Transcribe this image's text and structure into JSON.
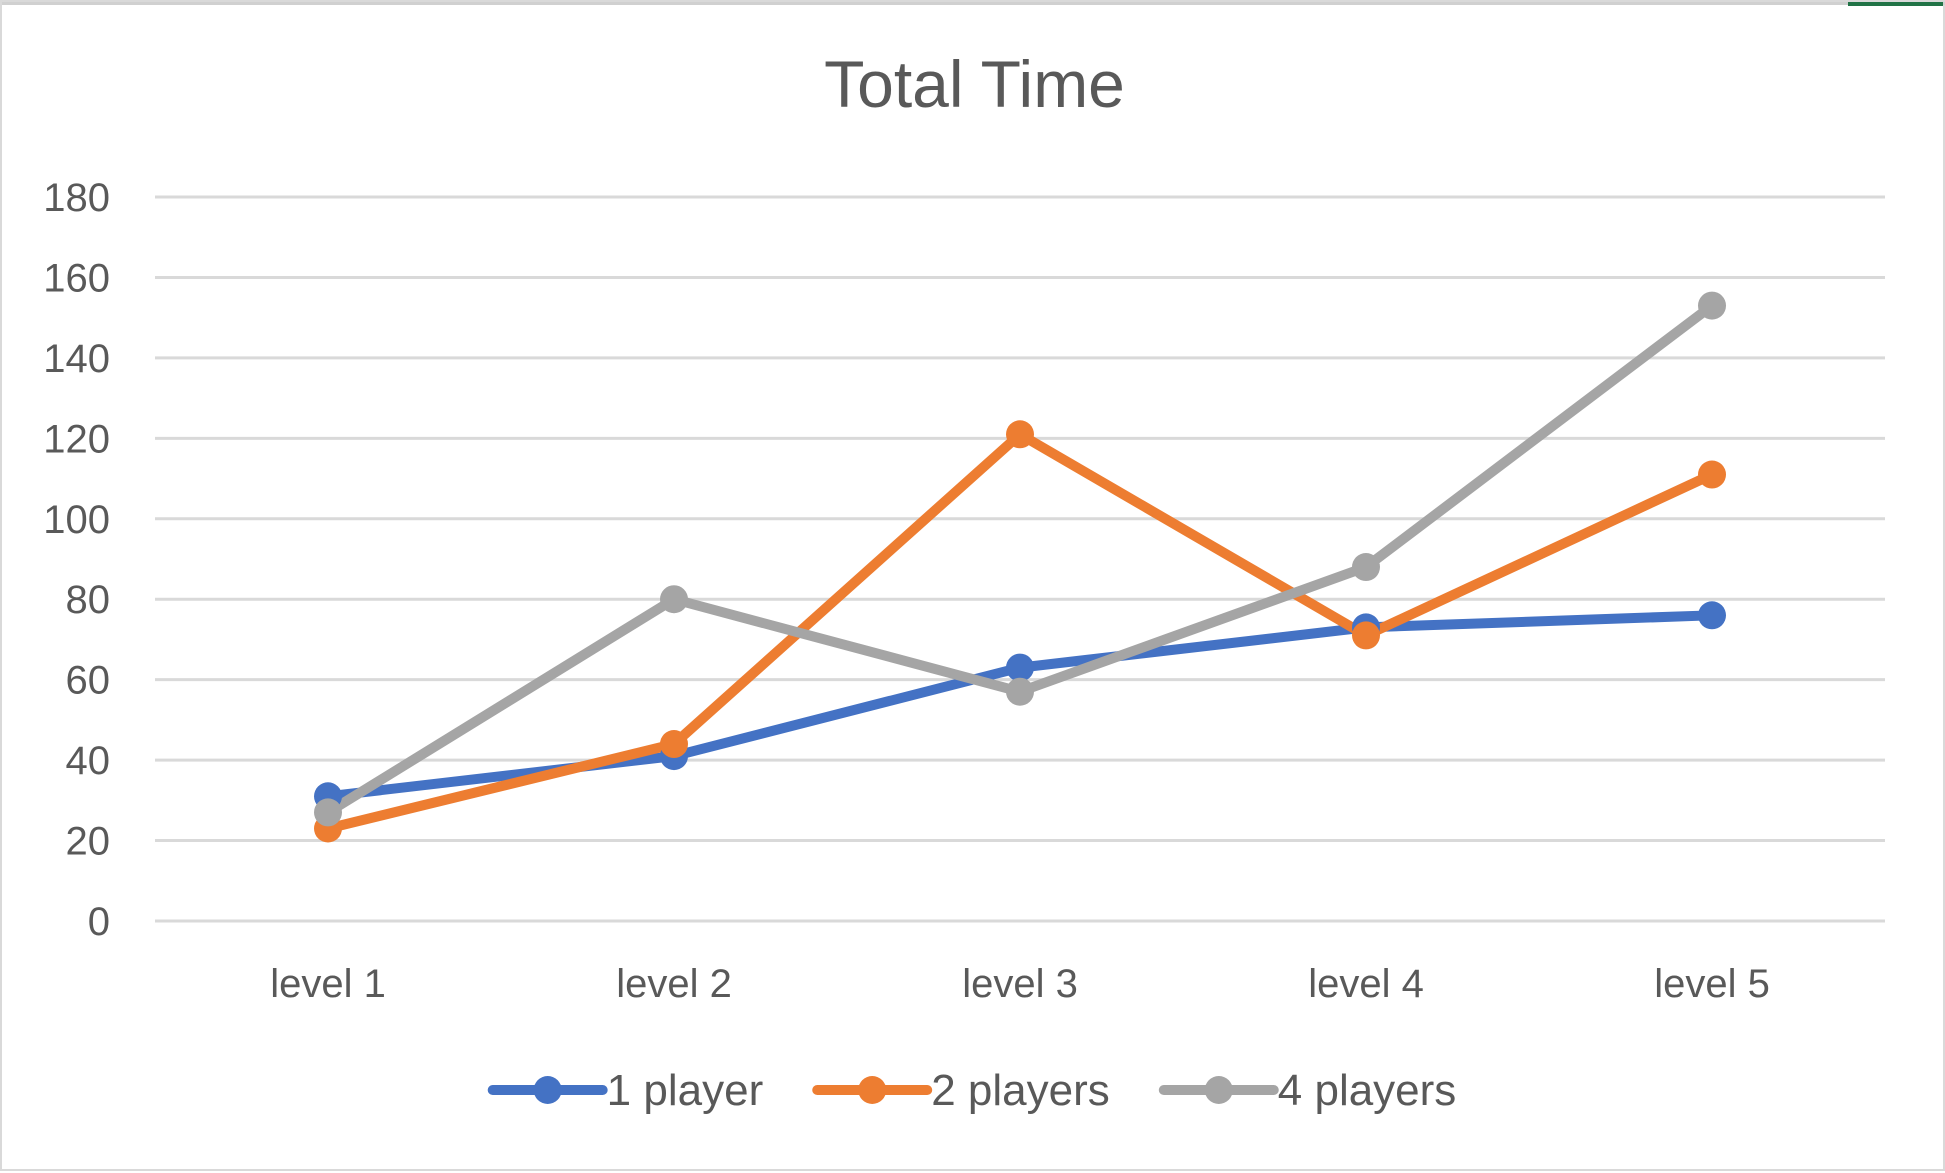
{
  "chart_data": {
    "type": "line",
    "title": "Total Time",
    "xlabel": "",
    "ylabel": "",
    "categories": [
      "level 1",
      "level 2",
      "level 3",
      "level 4",
      "level 5"
    ],
    "ylim": [
      0,
      180
    ],
    "yticks": [
      0,
      20,
      40,
      60,
      80,
      100,
      120,
      140,
      160,
      180
    ],
    "grid": true,
    "legend_position": "bottom",
    "series": [
      {
        "name": "1 player",
        "color": "#4472C4",
        "values": [
          31,
          41,
          63,
          73,
          76
        ]
      },
      {
        "name": "2 players",
        "color": "#ED7D31",
        "values": [
          23,
          44,
          121,
          71,
          111
        ]
      },
      {
        "name": "4 players",
        "color": "#A5A5A5",
        "values": [
          27,
          80,
          57,
          88,
          153
        ]
      }
    ]
  }
}
